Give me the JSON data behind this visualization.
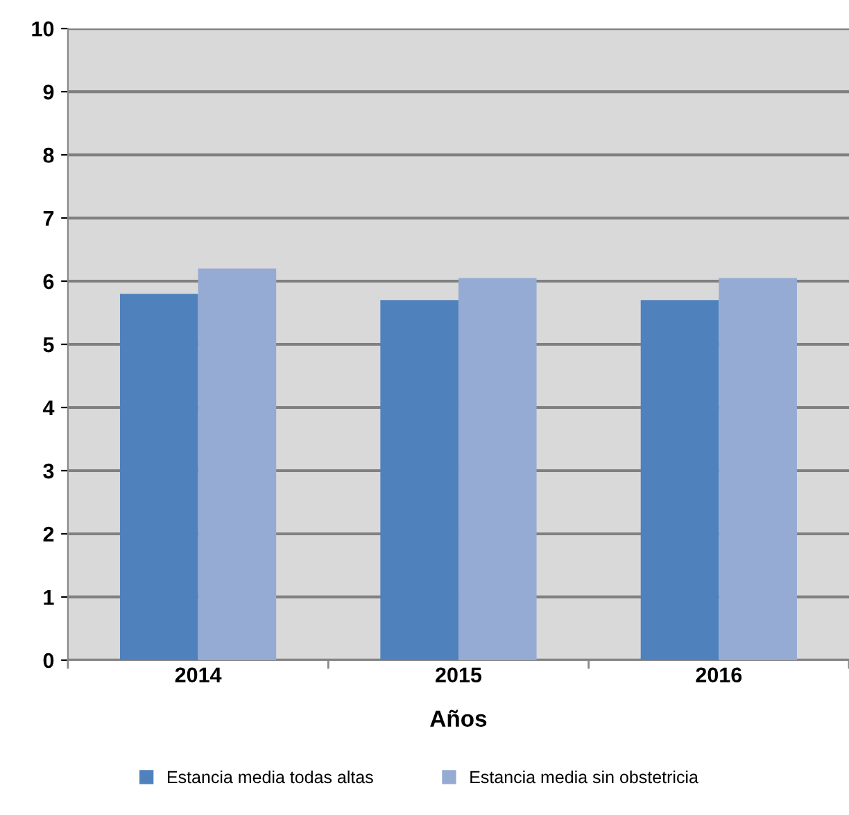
{
  "chart_data": {
    "type": "bar",
    "xlabel": "Años",
    "categories": [
      "2014",
      "2015",
      "2016"
    ],
    "series": [
      {
        "name": "Estancia media todas altas",
        "color": "#4f81bd",
        "values": [
          5.8,
          5.7,
          5.7
        ]
      },
      {
        "name": "Estancia media sin obstetricia",
        "color": "#95abd3",
        "values": [
          6.2,
          6.05,
          6.05
        ]
      }
    ],
    "ylim": [
      0,
      10
    ],
    "yticks": [
      0,
      1,
      2,
      3,
      4,
      5,
      6,
      7,
      8,
      9,
      10
    ],
    "grid": "y",
    "legend": "bottom"
  }
}
